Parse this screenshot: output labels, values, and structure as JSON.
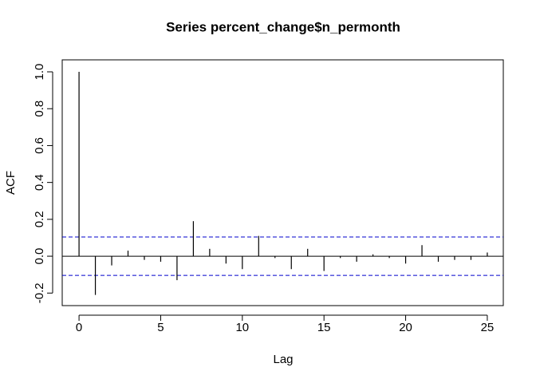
{
  "chart_data": {
    "type": "acf",
    "title": "Series  percent_change$n_permonth",
    "x_label": "Lag",
    "y_label": "ACF",
    "x": [
      0,
      1,
      2,
      3,
      4,
      5,
      6,
      7,
      8,
      9,
      10,
      11,
      12,
      13,
      14,
      15,
      16,
      17,
      18,
      19,
      20,
      21,
      22,
      23,
      24,
      25
    ],
    "values": [
      1.0,
      -0.21,
      -0.05,
      0.03,
      -0.02,
      -0.03,
      -0.13,
      0.19,
      0.04,
      -0.04,
      -0.07,
      0.11,
      -0.01,
      -0.07,
      0.04,
      -0.08,
      -0.01,
      -0.03,
      0.01,
      -0.01,
      -0.04,
      0.06,
      -0.03,
      -0.02,
      -0.02,
      0.02
    ],
    "color": "#000000",
    "ci_bounds": [
      0.104,
      -0.104
    ],
    "ci_color": "#0000cc",
    "xlim": [
      -1.03,
      25.98
    ],
    "ylim": [
      -0.268,
      1.065
    ],
    "xticks": [
      0,
      5,
      10,
      15,
      20,
      25
    ],
    "yticks": [
      -0.2,
      {
        "value": 0,
        "label": "0.0"
      },
      0.2,
      0.4,
      0.6,
      0.8,
      {
        "value": 1,
        "label": "1.0"
      }
    ]
  }
}
